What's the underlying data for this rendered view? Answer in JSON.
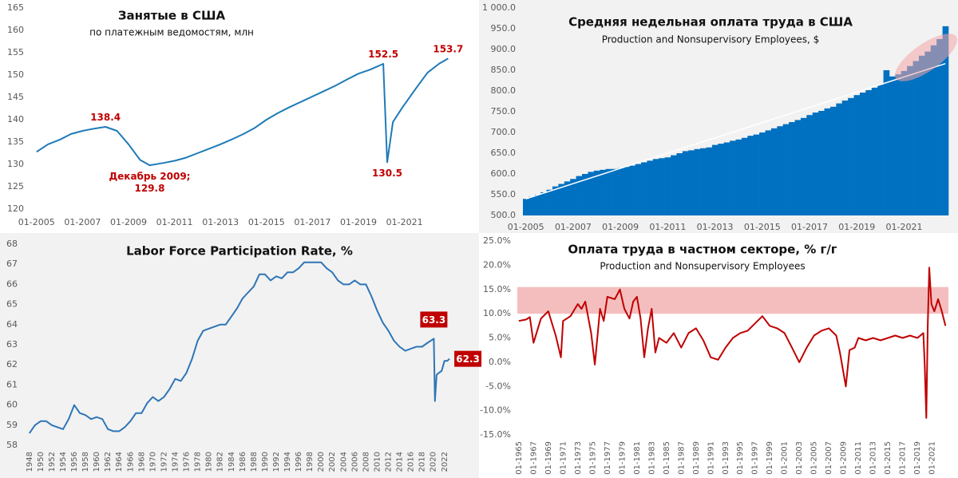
{
  "chart_data": [
    {
      "type": "line",
      "title": "Занятые в США",
      "subtitle": "по платежным ведомостям, млн",
      "color": "#1f7ab8",
      "x": [
        2005,
        2005.5,
        2006,
        2006.5,
        2007,
        2007.5,
        2008,
        2008.5,
        2009,
        2009.5,
        2009.92,
        2010.5,
        2011,
        2011.5,
        2012,
        2012.5,
        2013,
        2013.5,
        2014,
        2014.5,
        2015,
        2015.5,
        2016,
        2016.5,
        2017,
        2017.5,
        2018,
        2018.5,
        2019,
        2019.5,
        2020.08,
        2020.25,
        2020.5,
        2020.92,
        2021.5,
        2022,
        2022.5,
        2022.9
      ],
      "values": [
        132.8,
        134.5,
        135.5,
        136.8,
        137.5,
        138.0,
        138.4,
        137.5,
        134.5,
        131.0,
        129.8,
        130.3,
        130.8,
        131.5,
        132.5,
        133.5,
        134.5,
        135.6,
        136.8,
        138.2,
        140.0,
        141.5,
        142.8,
        144.0,
        145.2,
        146.4,
        147.6,
        149.0,
        150.3,
        151.2,
        152.5,
        130.5,
        139.5,
        142.8,
        147.0,
        150.5,
        152.5,
        153.7
      ],
      "value_labels": [
        null,
        null,
        null,
        null,
        null,
        null,
        "138.4",
        null,
        null,
        null,
        "Декабрь 2009;\n129.8",
        null,
        null,
        null,
        null,
        null,
        null,
        null,
        null,
        null,
        null,
        null,
        null,
        null,
        null,
        null,
        null,
        null,
        null,
        null,
        "152.5",
        "130.5",
        null,
        null,
        null,
        null,
        null,
        "153.7"
      ],
      "xlim": [
        2004.8,
        2023.2
      ],
      "ylim": [
        120,
        165
      ],
      "yticks": [
        120,
        125,
        130,
        135,
        140,
        145,
        150,
        155,
        160,
        165
      ],
      "xticks": [
        {
          "value": 2005,
          "label": "01-2005"
        },
        {
          "value": 2007,
          "label": "01-2007"
        },
        {
          "value": 2009,
          "label": "01-2009"
        },
        {
          "value": 2011,
          "label": "01-2011"
        },
        {
          "value": 2013,
          "label": "01-2013"
        },
        {
          "value": 2015,
          "label": "01-2015"
        },
        {
          "value": 2017,
          "label": "01-2017"
        },
        {
          "value": 2019,
          "label": "01-2019"
        },
        {
          "value": 2021,
          "label": "01-2021"
        }
      ]
    },
    {
      "type": "bar",
      "title": "Средняя недельная оплата труда в США",
      "subtitle": "Production and Nonsupervisory Employees, $",
      "color": "#0070c0",
      "categories": [
        "01-2005",
        null,
        null,
        null,
        null,
        null,
        null,
        null,
        "01-2007",
        null,
        null,
        null,
        null,
        null,
        null,
        null,
        "01-2009",
        null,
        null,
        null,
        null,
        null,
        null,
        null,
        "01-2011",
        null,
        null,
        null,
        null,
        null,
        null,
        null,
        "01-2013",
        null,
        null,
        null,
        null,
        null,
        null,
        null,
        "01-2015",
        null,
        null,
        null,
        null,
        null,
        null,
        null,
        "01-2017",
        null,
        null,
        null,
        null,
        null,
        null,
        null,
        "01-2019",
        null,
        null,
        null,
        null,
        null,
        null,
        null,
        "01-2021",
        null,
        null,
        null,
        null,
        null,
        null,
        null
      ],
      "values": [
        540,
        545,
        550,
        556,
        562,
        570,
        576,
        582,
        588,
        595,
        600,
        605,
        608,
        610,
        612,
        612,
        614,
        617,
        620,
        624,
        628,
        632,
        636,
        638,
        640,
        645,
        650,
        655,
        657,
        660,
        662,
        664,
        670,
        673,
        676,
        680,
        683,
        687,
        692,
        695,
        700,
        705,
        710,
        715,
        720,
        725,
        730,
        735,
        742,
        748,
        752,
        758,
        762,
        770,
        777,
        783,
        790,
        796,
        802,
        808,
        815,
        850,
        835,
        840,
        848,
        860,
        872,
        885,
        895,
        910,
        925,
        956
      ],
      "trendline": [
        540,
        866
      ],
      "ylim": [
        500,
        1000
      ],
      "yticks": [
        {
          "value": 500,
          "label": "500.0"
        },
        {
          "value": 550,
          "label": "550.0"
        },
        {
          "value": 600,
          "label": "600.0"
        },
        {
          "value": 650,
          "label": "650.0"
        },
        {
          "value": 700,
          "label": "700.0"
        },
        {
          "value": 750,
          "label": "750.0"
        },
        {
          "value": 800,
          "label": "800.0"
        },
        {
          "value": 850,
          "label": "850.0"
        },
        {
          "value": 900,
          "label": "900.0"
        },
        {
          "value": 950,
          "label": "950.0"
        },
        {
          "value": 1000,
          "label": "1 000.0"
        }
      ]
    },
    {
      "type": "line",
      "title": "Labor Force Participation Rate, %",
      "color": "#2e75b6",
      "x": [
        1948,
        1949,
        1950,
        1951,
        1952,
        1953,
        1954,
        1955,
        1956,
        1957,
        1958,
        1959,
        1960,
        1961,
        1962,
        1963,
        1964,
        1965,
        1966,
        1967,
        1968,
        1969,
        1970,
        1971,
        1972,
        1973,
        1974,
        1975,
        1976,
        1977,
        1978,
        1979,
        1980,
        1981,
        1982,
        1983,
        1984,
        1985,
        1986,
        1987,
        1988,
        1989,
        1990,
        1991,
        1992,
        1993,
        1994,
        1995,
        1996,
        1997,
        1998,
        1999,
        2000,
        2001,
        2002,
        2003,
        2004,
        2005,
        2006,
        2007,
        2008,
        2009,
        2010,
        2011,
        2012,
        2013,
        2014,
        2015,
        2016,
        2017,
        2018,
        2019,
        2020.1,
        2020.3,
        2020.6,
        2021,
        2021.5,
        2022,
        2022.5,
        2022.9
      ],
      "values": [
        58.6,
        59.0,
        59.2,
        59.2,
        59.0,
        58.9,
        58.8,
        59.3,
        60.0,
        59.6,
        59.5,
        59.3,
        59.4,
        59.3,
        58.8,
        58.7,
        58.7,
        58.9,
        59.2,
        59.6,
        59.6,
        60.1,
        60.4,
        60.2,
        60.4,
        60.8,
        61.3,
        61.2,
        61.6,
        62.3,
        63.2,
        63.7,
        63.8,
        63.9,
        64.0,
        64.0,
        64.4,
        64.8,
        65.3,
        65.6,
        65.9,
        66.5,
        66.5,
        66.2,
        66.4,
        66.3,
        66.6,
        66.6,
        66.8,
        67.1,
        67.1,
        67.1,
        67.1,
        66.8,
        66.6,
        66.2,
        66.0,
        66.0,
        66.2,
        66.0,
        66.0,
        65.4,
        64.7,
        64.1,
        63.7,
        63.2,
        62.9,
        62.7,
        62.8,
        62.9,
        62.9,
        63.1,
        63.3,
        60.2,
        61.5,
        61.6,
        61.7,
        62.2,
        62.2,
        62.3
      ],
      "value_labels": [
        null,
        null,
        null,
        null,
        null,
        null,
        null,
        null,
        null,
        null,
        null,
        null,
        null,
        null,
        null,
        null,
        null,
        null,
        null,
        null,
        null,
        null,
        null,
        null,
        null,
        null,
        null,
        null,
        null,
        null,
        null,
        null,
        null,
        null,
        null,
        null,
        null,
        null,
        null,
        null,
        null,
        null,
        null,
        null,
        null,
        null,
        null,
        null,
        null,
        null,
        null,
        null,
        null,
        null,
        null,
        null,
        null,
        null,
        null,
        null,
        null,
        null,
        null,
        null,
        null,
        null,
        null,
        null,
        null,
        null,
        null,
        null,
        "63.3",
        null,
        null,
        null,
        null,
        null,
        null,
        "62.3"
      ],
      "value_label_color": "#c00000",
      "xlim": [
        1947.6,
        2023.6
      ],
      "ylim": [
        58,
        68
      ],
      "yticks": [
        58,
        59,
        60,
        61,
        62,
        63,
        64,
        65,
        66,
        67,
        68
      ],
      "xticks": [
        1948,
        1950,
        1952,
        1954,
        1956,
        1958,
        1960,
        1962,
        1964,
        1966,
        1968,
        1970,
        1972,
        1974,
        1976,
        1978,
        1980,
        1982,
        1984,
        1986,
        1988,
        1990,
        1992,
        1994,
        1996,
        1998,
        2000,
        2002,
        2004,
        2006,
        2008,
        2010,
        2012,
        2014,
        2016,
        2018,
        2020,
        2022
      ]
    },
    {
      "type": "line",
      "title": "Оплата труда в частном секторе, % г/г",
      "subtitle": "Production and Nonsupervisory Employees",
      "color": "#c00000",
      "highlight_band": [
        10,
        15.5
      ],
      "band_color": "#f2b3b3",
      "x": [
        1965,
        1966,
        1966.5,
        1967,
        1968,
        1969,
        1970,
        1970.7,
        1971,
        1972,
        1973,
        1973.5,
        1974,
        1974.8,
        1975.3,
        1976,
        1976.5,
        1977,
        1978,
        1978.7,
        1979.3,
        1980,
        1980.5,
        1981,
        1981.5,
        1982,
        1982.5,
        1983,
        1983.5,
        1984,
        1985,
        1986,
        1987,
        1988,
        1989,
        1990,
        1991,
        1992,
        1993,
        1994,
        1995,
        1996,
        1997,
        1998,
        1999,
        2000,
        2001,
        2002,
        2003,
        2003.5,
        2004,
        2005,
        2006,
        2007,
        2008,
        2008.5,
        2009.3,
        2009.8,
        2010.5,
        2011,
        2012,
        2013,
        2014,
        2015,
        2016,
        2017,
        2018,
        2019,
        2019.8,
        2020.0,
        2020.2,
        2020.4,
        2020.6,
        2020.9,
        2021.3,
        2021.8,
        2022.3,
        2022.8
      ],
      "values": [
        8.5,
        8.8,
        9.3,
        4.0,
        9.0,
        10.5,
        5.5,
        1.0,
        8.5,
        9.5,
        12.0,
        11.0,
        12.5,
        6.0,
        -0.5,
        11.0,
        8.5,
        13.5,
        13.0,
        15.0,
        11.0,
        9.0,
        12.5,
        13.5,
        9.0,
        1.0,
        7.0,
        11.0,
        2.0,
        5.0,
        4.0,
        6.0,
        3.0,
        6.0,
        7.0,
        4.5,
        1.0,
        0.5,
        3.0,
        5.0,
        6.0,
        6.5,
        8.0,
        9.5,
        7.5,
        7.0,
        6.0,
        3.0,
        0.0,
        1.5,
        3.0,
        5.5,
        6.5,
        7.0,
        5.5,
        2.0,
        -5.0,
        2.5,
        3.0,
        5.0,
        4.5,
        5.0,
        4.5,
        5.0,
        5.5,
        5.0,
        5.5,
        5.0,
        6.0,
        -1.0,
        -11.5,
        7.5,
        19.5,
        12.0,
        10.5,
        13.0,
        10.5,
        7.5
      ],
      "xlim": [
        1964.8,
        2023.2
      ],
      "ylim": [
        -15,
        25
      ],
      "yticks": [
        {
          "value": -15,
          "label": "-15.0%"
        },
        {
          "value": -10,
          "label": "-10.0%"
        },
        {
          "value": -5,
          "label": "-5.0%"
        },
        {
          "value": 0,
          "label": "0.0%"
        },
        {
          "value": 5,
          "label": "5.0%"
        },
        {
          "value": 10,
          "label": "10.0%"
        },
        {
          "value": 15,
          "label": "15.0%"
        },
        {
          "value": 20,
          "label": "20.0%"
        },
        {
          "value": 25,
          "label": "25.0%"
        }
      ],
      "xticks": [
        {
          "value": 1965,
          "label": "01-1965"
        },
        {
          "value": 1967,
          "label": "01-1967"
        },
        {
          "value": 1969,
          "label": "01-1969"
        },
        {
          "value": 1971,
          "label": "01-1971"
        },
        {
          "value": 1973,
          "label": "01-1973"
        },
        {
          "value": 1975,
          "label": "01-1975"
        },
        {
          "value": 1977,
          "label": "01-1977"
        },
        {
          "value": 1979,
          "label": "01-1979"
        },
        {
          "value": 1981,
          "label": "01-1981"
        },
        {
          "value": 1983,
          "label": "01-1983"
        },
        {
          "value": 1985,
          "label": "01-1985"
        },
        {
          "value": 1987,
          "label": "01-1987"
        },
        {
          "value": 1989,
          "label": "01-1989"
        },
        {
          "value": 1991,
          "label": "01-1991"
        },
        {
          "value": 1993,
          "label": "01-1993"
        },
        {
          "value": 1995,
          "label": "01-1995"
        },
        {
          "value": 1997,
          "label": "01-1997"
        },
        {
          "value": 1999,
          "label": "01-1999"
        },
        {
          "value": 2001,
          "label": "01-2001"
        },
        {
          "value": 2003,
          "label": "01-2003"
        },
        {
          "value": 2005,
          "label": "01-2005"
        },
        {
          "value": 2007,
          "label": "01-2007"
        },
        {
          "value": 2009,
          "label": "01-2009"
        },
        {
          "value": 2011,
          "label": "01-2011"
        },
        {
          "value": 2013,
          "label": "01-2013"
        },
        {
          "value": 2015,
          "label": "01-2015"
        },
        {
          "value": 2017,
          "label": "01-2017"
        },
        {
          "value": 2019,
          "label": "01-2019"
        },
        {
          "value": 2021,
          "label": "01-2021"
        }
      ]
    }
  ]
}
